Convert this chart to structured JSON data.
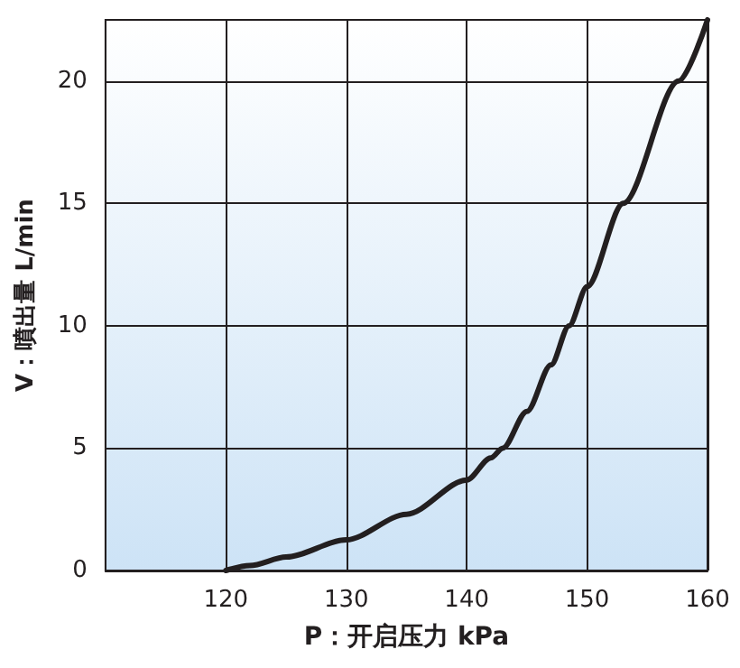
{
  "chart_data": {
    "type": "line",
    "xlabel": "P：开启压力 kPa",
    "ylabel": "V：噴出量 L/min",
    "x": [
      120,
      122,
      125,
      130,
      135,
      140,
      142,
      143,
      145,
      147,
      148.5,
      150,
      153,
      157.6,
      160
    ],
    "series": [
      {
        "color": "#231f20",
        "values": [
          0,
          0.2,
          0.55,
          1.25,
          2.3,
          3.7,
          4.6,
          5,
          6.5,
          8.4,
          10,
          11.6,
          15,
          20,
          22.5
        ]
      }
    ],
    "xlim": [
      110,
      160
    ],
    "xticks": [
      120,
      130,
      140,
      150,
      160
    ],
    "ylim": [
      0,
      22.5
    ],
    "yticks": [
      0,
      5,
      10,
      15,
      20
    ],
    "grid": true,
    "marker": "none",
    "line_style": "solid"
  }
}
